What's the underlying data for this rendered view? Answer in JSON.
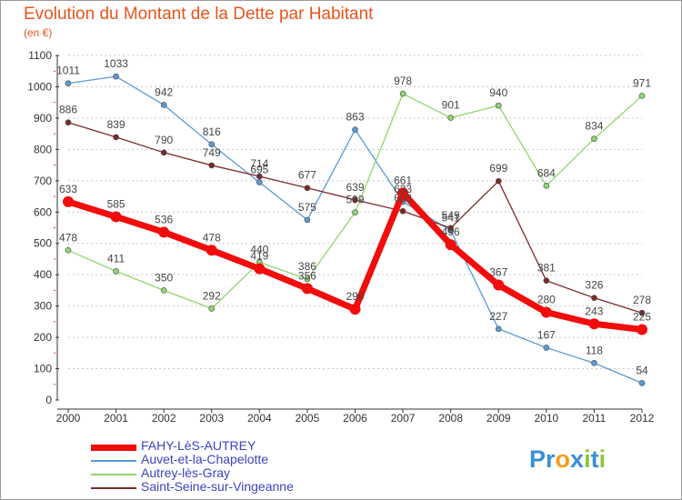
{
  "title": "Evolution du Montant de la Dette par Habitant",
  "subtitle": "(en €)",
  "chart_data": {
    "type": "line",
    "title": "Evolution du Montant de la Dette par Habitant",
    "subtitle": "(en €)",
    "xlabel": "",
    "ylabel": "",
    "x": [
      "2000",
      "2001",
      "2002",
      "2003",
      "2004",
      "2005",
      "2006",
      "2007",
      "2008",
      "2009",
      "2010",
      "2011",
      "2012"
    ],
    "ylim": [
      0,
      1100
    ],
    "yticks": [
      0,
      100,
      200,
      300,
      400,
      500,
      600,
      700,
      800,
      900,
      1000,
      1100
    ],
    "grid": "horizontal dashed",
    "legend_position": "bottom-left",
    "series": [
      {
        "name": "FAHY-LèS-AUTREY",
        "color": "#f20c0c",
        "values": [
          633,
          585,
          536,
          478,
          419,
          356,
          290,
          661,
          496,
          367,
          280,
          243,
          225
        ],
        "labels": [
          "633",
          "585",
          "536",
          "478",
          "419",
          "356",
          "290",
          "661",
          "496",
          "367",
          "280",
          "243",
          "225"
        ]
      },
      {
        "name": "Auvet-et-la-Chapelotte",
        "color": "#5b9bd5",
        "values": [
          1011,
          1033,
          942,
          816,
          695,
          575,
          863,
          633,
          541,
          227,
          167,
          118,
          54
        ],
        "labels": [
          "1011",
          "1033",
          "942",
          "816",
          "695",
          "575",
          "863",
          "633",
          "541",
          "227",
          "167",
          "118",
          "54"
        ]
      },
      {
        "name": "Autrey-lès-Gray",
        "color": "#8fd66f",
        "values": [
          478,
          411,
          350,
          292,
          440,
          386,
          599,
          978,
          901,
          940,
          684,
          834,
          971
        ],
        "labels": [
          "478",
          "411",
          "350",
          "292",
          "440",
          "386",
          "599",
          "978",
          "901",
          "940",
          "684",
          "834",
          "971"
        ]
      },
      {
        "name": "Saint-Seine-sur-Vingeanne",
        "color": "#7b2a2a",
        "values": [
          886,
          839,
          790,
          749,
          714,
          677,
          639,
          603,
          549,
          699,
          381,
          326,
          278
        ],
        "labels": [
          "886",
          "839",
          "790",
          "749",
          "714",
          "677",
          "639",
          "603",
          "549",
          "699",
          "381",
          "326",
          "278"
        ]
      }
    ]
  },
  "logo": {
    "text": "Proxiti",
    "letters": [
      "P",
      "r",
      "o",
      "x",
      "i",
      "t",
      "i"
    ],
    "colors": [
      "#3a8fd8",
      "#3a8fd8",
      "#f0a020",
      "#3a8fd8",
      "#8fc43a",
      "#3a8fd8",
      "#8fc43a"
    ]
  }
}
